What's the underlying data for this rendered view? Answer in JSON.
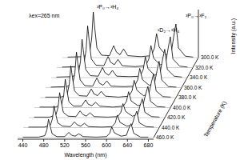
{
  "chart_data": {
    "type": "waterfall",
    "x_label": "Wavelength (nm)",
    "y_label": "Intensity (a.u.)",
    "z_label": "Temperature (K)",
    "annotations": [
      "λex=265 nm",
      "³P₀→³H₄",
      "¹D₂→³H₄",
      "³P₀→³F₂"
    ],
    "xlim": [
      430,
      690
    ],
    "xticks": [
      440,
      480,
      520,
      560,
      600,
      640,
      680
    ],
    "ylim": [
      0,
      100
    ],
    "tick_labels": "x",
    "x": [
      440,
      470,
      482,
      486,
      489,
      492,
      496,
      505,
      520,
      528,
      533,
      540,
      547,
      555,
      580,
      600,
      606,
      610,
      615,
      620,
      628,
      638,
      643,
      647,
      652,
      665,
      680
    ],
    "series": [
      {
        "name": "300.0 K",
        "color": "#000000",
        "values": [
          1,
          2,
          10,
          40,
          95,
          60,
          20,
          5,
          4,
          25,
          12,
          6,
          18,
          4,
          2,
          4,
          20,
          50,
          22,
          15,
          6,
          10,
          45,
          70,
          20,
          3,
          1
        ]
      },
      {
        "name": "320.0 K",
        "color": "#000000",
        "values": [
          1,
          2,
          9,
          37,
          87,
          55,
          18,
          5,
          4,
          23,
          11,
          6,
          17,
          4,
          2,
          4,
          18,
          46,
          20,
          14,
          6,
          9,
          41,
          64,
          18,
          3,
          1
        ]
      },
      {
        "name": "340.0 K",
        "color": "#000000",
        "values": [
          1,
          2,
          8,
          34,
          80,
          51,
          17,
          4,
          3,
          21,
          10,
          5,
          15,
          3,
          2,
          3,
          17,
          43,
          19,
          13,
          5,
          9,
          38,
          59,
          17,
          3,
          1
        ]
      },
      {
        "name": "360.0 K",
        "color": "#000000",
        "values": [
          1,
          2,
          8,
          31,
          74,
          47,
          16,
          4,
          3,
          20,
          9,
          5,
          14,
          3,
          2,
          3,
          16,
          40,
          17,
          12,
          5,
          8,
          35,
          55,
          16,
          2,
          1
        ]
      },
      {
        "name": "380.0 K",
        "color": "#000000",
        "values": [
          1,
          1,
          7,
          28,
          66,
          42,
          14,
          4,
          3,
          18,
          8,
          4,
          13,
          3,
          1,
          3,
          14,
          36,
          16,
          11,
          4,
          7,
          32,
          49,
          14,
          2,
          1
        ]
      },
      {
        "name": "400.0 K",
        "color": "#000000",
        "values": [
          1,
          1,
          6,
          25,
          59,
          37,
          12,
          3,
          3,
          16,
          7,
          4,
          11,
          3,
          1,
          3,
          13,
          33,
          14,
          10,
          4,
          7,
          29,
          44,
          13,
          2,
          1
        ]
      },
      {
        "name": "420.0 K",
        "color": "#000000",
        "values": [
          1,
          1,
          6,
          22,
          52,
          33,
          11,
          3,
          2,
          14,
          7,
          3,
          10,
          2,
          1,
          2,
          11,
          29,
          13,
          9,
          3,
          6,
          26,
          39,
          11,
          2,
          1
        ]
      },
      {
        "name": "440.0 K",
        "color": "#000000",
        "values": [
          1,
          1,
          5,
          19,
          45,
          29,
          10,
          3,
          2,
          12,
          6,
          3,
          9,
          2,
          1,
          2,
          10,
          26,
          11,
          8,
          3,
          5,
          23,
          34,
          10,
          2,
          1
        ]
      },
      {
        "name": "460.0 K",
        "color": "#000000",
        "values": [
          1,
          1,
          4,
          16,
          38,
          25,
          8,
          2,
          2,
          11,
          5,
          3,
          8,
          2,
          1,
          2,
          9,
          22,
          10,
          7,
          3,
          5,
          20,
          29,
          9,
          1,
          1
        ]
      }
    ]
  }
}
